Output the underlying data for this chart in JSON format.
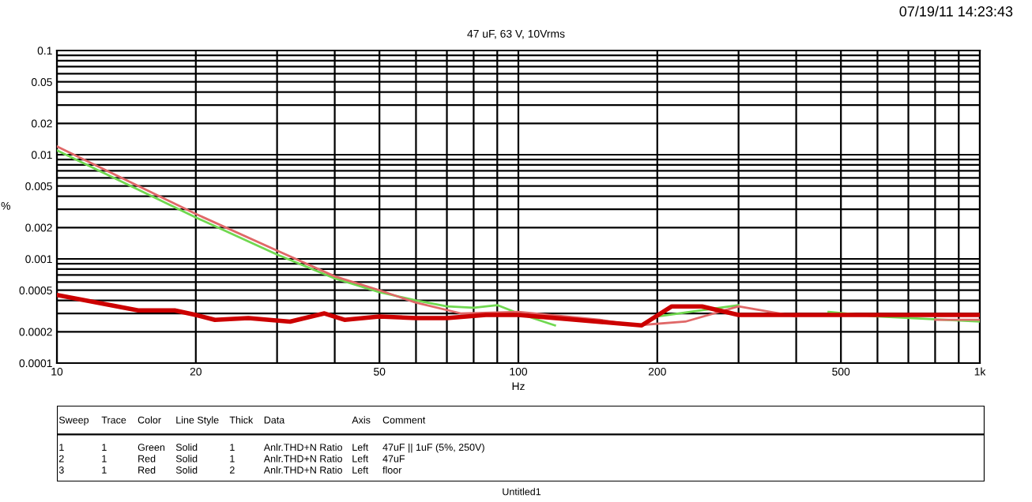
{
  "chart_data": {
    "type": "line",
    "title": "47 uF, 63 V, 10Vrms",
    "xlabel": "Hz",
    "ylabel": "%",
    "log": "xy",
    "grid": true,
    "marker": "none",
    "line_style": "solid",
    "xlim": [
      10,
      1000
    ],
    "xticks": [
      10,
      20,
      50,
      100,
      200,
      500,
      {
        "value": 1000,
        "label": "1k"
      }
    ],
    "ylim": [
      0.0001,
      0.1
    ],
    "yticks": [
      0.0001,
      0.0002,
      0.0005,
      0.001,
      0.002,
      0.005,
      0.01,
      0.02,
      0.05,
      0.1
    ],
    "series": [
      {
        "color": "#70d850",
        "x": [
          10,
          20,
          30,
          40,
          50,
          60,
          70,
          80,
          90,
          100,
          120,
          150,
          200,
          300,
          400,
          470,
          600,
          1000
        ],
        "values": [
          0.011,
          0.0025,
          0.0011,
          0.00065,
          0.00048,
          0.0004,
          0.00035,
          0.00034,
          0.00036,
          0.0003,
          0.00023,
          null,
          0.00028,
          0.00036,
          null,
          0.00031,
          0.00028,
          0.00025
        ]
      },
      {
        "color": "#e06868",
        "x": [
          10,
          20,
          30,
          40,
          50,
          60,
          75,
          100,
          150,
          180,
          230,
          300,
          400,
          650,
          800,
          1000
        ],
        "values": [
          0.012,
          0.0027,
          0.0012,
          0.00068,
          0.0005,
          0.00038,
          0.0003,
          0.00031,
          0.00026,
          0.00023,
          0.00025,
          0.00035,
          0.00028,
          null,
          0.00026,
          0.00026
        ]
      },
      {
        "color": "#cc0000",
        "x": [
          10,
          15,
          18,
          20,
          22,
          26,
          32,
          38,
          42,
          50,
          60,
          70,
          85,
          100,
          185,
          215,
          250,
          300,
          500,
          800,
          1000
        ],
        "values": [
          0.00045,
          0.00032,
          0.00032,
          0.00029,
          0.00026,
          0.00027,
          0.00025,
          0.0003,
          0.00026,
          0.00028,
          0.00027,
          0.00027,
          0.00029,
          0.00029,
          0.00023,
          0.00035,
          0.00035,
          0.00029,
          0.00029,
          0.00029,
          0.00029
        ]
      }
    ],
    "annotations": [
      "Sweep",
      "Trace",
      "Color",
      "Line Style",
      "Thick",
      "Data",
      "Axis",
      "Comment",
      "1",
      "1",
      "Green",
      "Solid",
      "1",
      "Anlr.THD+N Ratio",
      "Left",
      "47uF || 1uF (5%, 250V)",
      "2",
      "1",
      "Red",
      "Solid",
      "1",
      "Anlr.THD+N Ratio",
      "Left",
      "47uF",
      "3",
      "1",
      "Red",
      "Solid",
      "2",
      "Anlr.THD+N Ratio",
      "Left",
      "floor",
      "07/19/11 14:23:43",
      "Untitled1"
    ]
  }
}
